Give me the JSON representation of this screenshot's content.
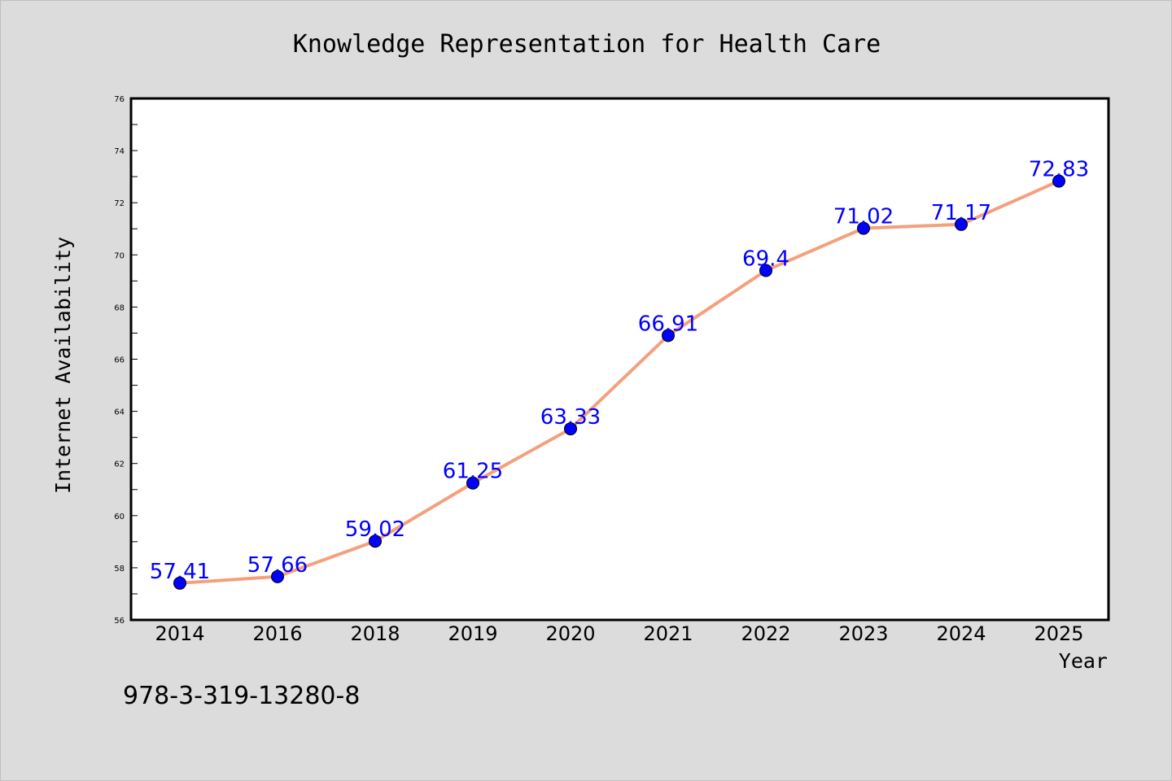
{
  "chart_data": {
    "type": "line",
    "title": "Knowledge Representation for Health Care",
    "xlabel": "Year",
    "ylabel": "Internet Availability",
    "categories": [
      "2014",
      "2016",
      "2018",
      "2019",
      "2020",
      "2021",
      "2022",
      "2023",
      "2024",
      "2025"
    ],
    "series": [
      {
        "values": [
          57.41,
          57.66,
          59.02,
          61.25,
          63.33,
          66.91,
          69.4,
          71.02,
          71.17,
          72.83
        ],
        "line_color": "#f4a07c",
        "marker_color": "#0000ff",
        "label_color": "#0000ff"
      }
    ],
    "data_labels": [
      "57.41",
      "57.66",
      "59.02",
      "61.25",
      "63.33",
      "66.91",
      "69.4",
      "71.02",
      "71.17",
      "72.83"
    ],
    "ylim": [
      56,
      76
    ],
    "yticks": [
      56,
      58,
      60,
      62,
      64,
      66,
      68,
      70,
      72,
      74,
      76
    ],
    "ytick_labels": [
      "56",
      "58",
      "60",
      "62",
      "64",
      "66",
      "68",
      "70",
      "72",
      "74",
      "76"
    ],
    "grid": false,
    "legend": "none"
  },
  "footer": {
    "code": "978-3-319-13280-8"
  },
  "colors": {
    "background": "#dcdcdc",
    "plot_background": "#ffffff",
    "line": "#f4a07c",
    "marker": "#0000ff"
  }
}
